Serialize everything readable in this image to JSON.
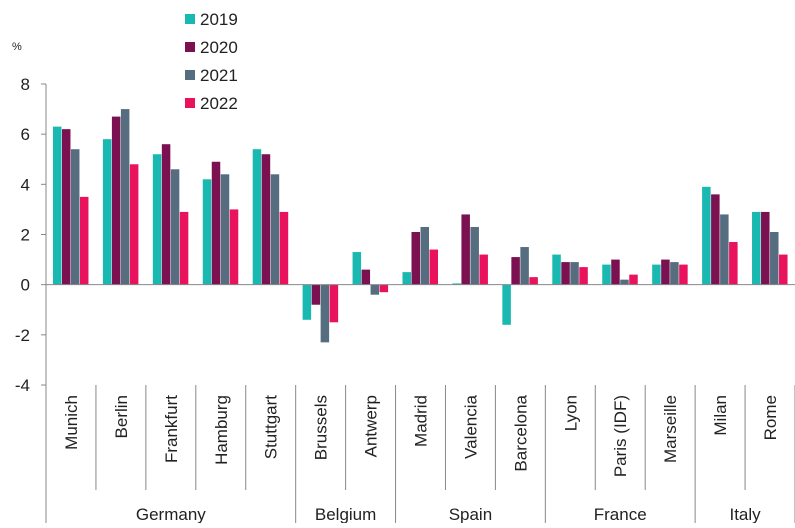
{
  "chart_data": {
    "type": "bar",
    "y_label": "%",
    "categories": [
      "Munich",
      "Berlin",
      "Frankfurt",
      "Hamburg",
      "Stuttgart",
      "Brussels",
      "Antwerp",
      "Madrid",
      "Valencia",
      "Barcelona",
      "Lyon",
      "Paris (IDF)",
      "Marseille",
      "Milan",
      "Rome"
    ],
    "groups": [
      {
        "label": "Germany",
        "size": 5
      },
      {
        "label": "Belgium",
        "size": 2
      },
      {
        "label": "Spain",
        "size": 3
      },
      {
        "label": "France",
        "size": 3
      },
      {
        "label": "Italy",
        "size": 2
      }
    ],
    "series": [
      {
        "name": "2019",
        "color": "#19b8b0",
        "values": [
          6.3,
          5.8,
          5.2,
          4.2,
          5.4,
          -1.4,
          1.3,
          0.5,
          0.05,
          -1.6,
          1.2,
          0.8,
          0.8,
          3.9,
          2.9
        ]
      },
      {
        "name": "2020",
        "color": "#7b1150",
        "values": [
          6.2,
          6.7,
          5.6,
          4.9,
          5.2,
          -0.8,
          0.6,
          2.1,
          2.8,
          1.1,
          0.9,
          1.0,
          1.0,
          3.6,
          2.9
        ]
      },
      {
        "name": "2021",
        "color": "#566d80",
        "values": [
          5.4,
          7.0,
          4.6,
          4.4,
          4.4,
          -2.3,
          -0.4,
          2.3,
          2.3,
          1.5,
          0.9,
          0.2,
          0.9,
          2.8,
          2.1
        ]
      },
      {
        "name": "2022",
        "color": "#e8135c",
        "values": [
          3.5,
          4.8,
          2.9,
          3.0,
          2.9,
          -1.5,
          -0.3,
          1.4,
          1.2,
          0.3,
          0.7,
          0.4,
          0.8,
          1.7,
          1.2
        ]
      }
    ],
    "ylim": [
      -4,
      8
    ],
    "yticks": [
      -4,
      -2,
      0,
      2,
      4,
      6,
      8
    ],
    "grid": false,
    "legend": "top-left"
  }
}
